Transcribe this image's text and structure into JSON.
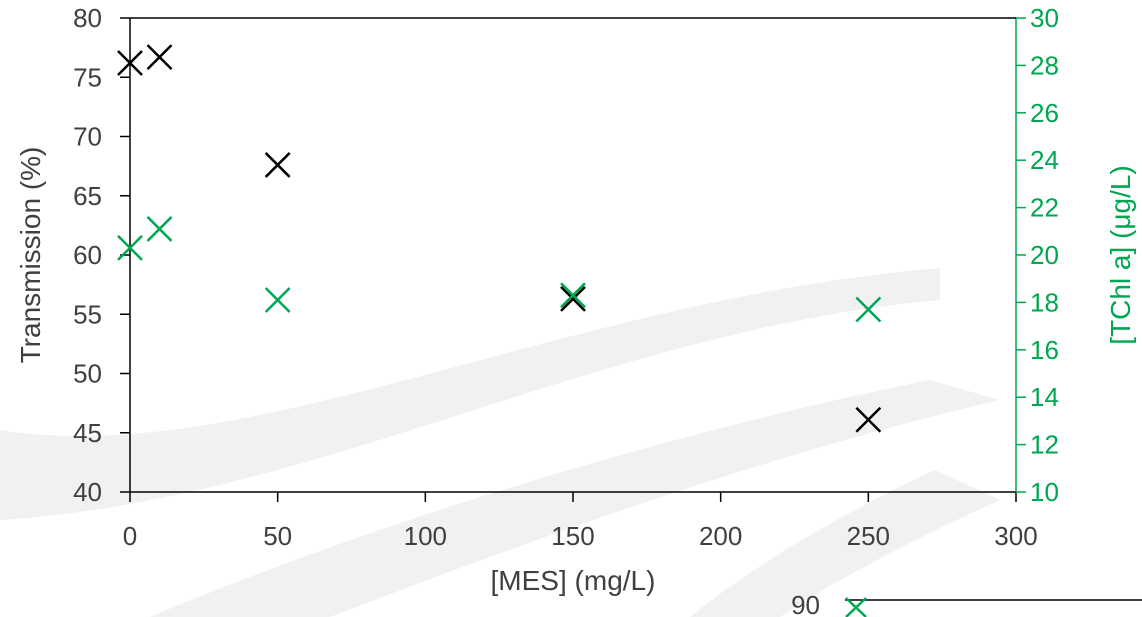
{
  "chart_data": {
    "type": "scatter",
    "xlabel": "[MES] (mg/L)",
    "ylabel": "Transmission (%)",
    "y2label": "[TChl a] (μg/L)",
    "xlim": [
      0,
      300
    ],
    "ylim": [
      40,
      80
    ],
    "y2lim": [
      10,
      30
    ],
    "xticks": [
      0,
      50,
      100,
      150,
      200,
      250,
      300
    ],
    "yticks": [
      40,
      45,
      50,
      55,
      60,
      65,
      70,
      75,
      80
    ],
    "y2ticks": [
      10,
      12,
      14,
      16,
      18,
      20,
      22,
      24,
      26,
      28,
      30
    ],
    "grid": false,
    "colors": {
      "primary": "#000000",
      "secondary": "#00a651"
    },
    "series": [
      {
        "axis": "left",
        "color": "#000000",
        "marker": "x",
        "x": [
          0,
          10,
          50,
          150,
          250
        ],
        "y": [
          76.2,
          76.7,
          67.6,
          56.3,
          46.1
        ]
      },
      {
        "axis": "right",
        "color": "#00a651",
        "marker": "x",
        "x": [
          0,
          10,
          50,
          150,
          250
        ],
        "y": [
          20.3,
          21.1,
          18.1,
          18.3,
          17.7
        ]
      }
    ],
    "overflow_fragment": {
      "tick_label": "90"
    }
  }
}
